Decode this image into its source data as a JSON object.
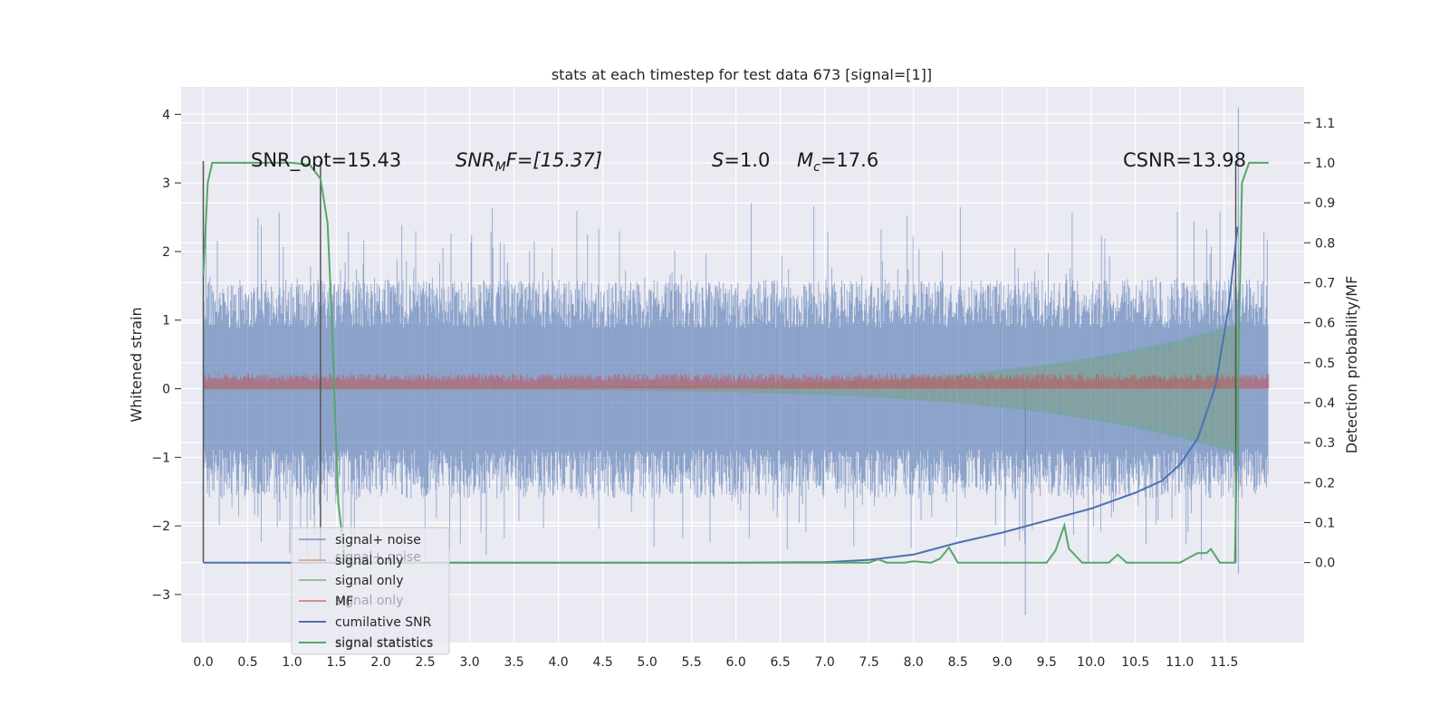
{
  "chart_data": {
    "type": "line",
    "title": "stats at each timestep for test data 673 [signal=[1]]",
    "ylabel": "Whitened strain",
    "y2label": "Detection probability/MF",
    "xlim": [
      -0.25,
      12.4
    ],
    "ylim": [
      -3.7,
      4.4
    ],
    "y2lim": [
      -0.2,
      1.19
    ],
    "grid": true,
    "legend_position": "lower-left",
    "x_ticks": [
      "0.0",
      "0.5",
      "1.0",
      "1.5",
      "2.0",
      "2.5",
      "3.0",
      "3.5",
      "4.0",
      "4.5",
      "5.0",
      "5.5",
      "6.0",
      "6.5",
      "7.0",
      "7.5",
      "8.0",
      "8.5",
      "9.0",
      "9.5",
      "10.0",
      "10.5",
      "11.0",
      "11.5"
    ],
    "y_ticks": [
      "4",
      "3",
      "2",
      "1",
      "0",
      "−1",
      "−2",
      "−3"
    ],
    "y2_ticks": [
      "1.1",
      "1.0",
      "0.9",
      "0.8",
      "0.7",
      "0.6",
      "0.5",
      "0.4",
      "0.3",
      "0.2",
      "0.1",
      "0.0"
    ],
    "annotations": {
      "snr_opt": "SNR_opt=15.43",
      "snr_mf_sym": "SNR",
      "snr_mf_sub": "M",
      "snr_mf_rest": "F=[15.37]",
      "s_sym": "S",
      "s_rest": "=1.0",
      "mc_sym": "M",
      "mc_sub": "c",
      "mc_rest": "=17.6",
      "csnr": "CSNR=13.98"
    },
    "legend": [
      "signal+ noise",
      "signal only",
      "signal only",
      "MF",
      "cumilative SNR",
      "signal statistics"
    ],
    "legend_ghost": [
      "signal+ noise",
      "signal only",
      "signal statistics"
    ],
    "colors": {
      "noise": "#4c72b0",
      "signal_orange": "#dd8452",
      "signal_green": "#55a868",
      "mf": "#c44e52",
      "csnr": "#4c72b0",
      "stat": "#55a868",
      "background": "#eaeaf2"
    },
    "series": [
      {
        "name": "cumilative SNR",
        "axis": "right",
        "x": [
          0.0,
          1.0,
          2.0,
          3.0,
          4.0,
          5.0,
          6.0,
          7.0,
          7.5,
          8.0,
          8.5,
          9.0,
          9.5,
          10.0,
          10.5,
          10.8,
          11.0,
          11.2,
          11.4,
          11.55,
          11.65
        ],
        "values": [
          0.0,
          0.0,
          0.0,
          0.0,
          0.0,
          0.0,
          0.0,
          0.001,
          0.007,
          0.02,
          0.05,
          0.075,
          0.105,
          0.135,
          0.175,
          0.205,
          0.245,
          0.31,
          0.44,
          0.64,
          0.84
        ]
      },
      {
        "name": "signal statistics",
        "axis": "right",
        "x": [
          0.0,
          0.05,
          0.1,
          0.2,
          0.5,
          1.0,
          1.2,
          1.32,
          1.4,
          1.45,
          1.52,
          1.6,
          2.0,
          7.5,
          7.6,
          7.7,
          7.9,
          8.0,
          8.2,
          8.3,
          8.4,
          8.5,
          9.0,
          9.5,
          9.6,
          9.7,
          9.75,
          9.9,
          10.2,
          10.3,
          10.4,
          11.0,
          11.2,
          11.3,
          11.35,
          11.45,
          11.55,
          11.62,
          11.66,
          11.7,
          11.78,
          11.85,
          12.0
        ],
        "values": [
          0.72,
          0.95,
          1.0,
          1.0,
          1.0,
          1.0,
          0.995,
          0.96,
          0.85,
          0.6,
          0.15,
          0.0,
          0.0,
          0.0,
          0.008,
          0.0,
          0.0,
          0.003,
          0.0,
          0.01,
          0.038,
          0.0,
          0.0,
          0.0,
          0.03,
          0.093,
          0.035,
          0.0,
          0.0,
          0.02,
          0.0,
          0.0,
          0.024,
          0.024,
          0.034,
          0.0,
          0.0,
          0.0,
          0.5,
          0.95,
          1.0,
          1.0,
          1.0
        ]
      },
      {
        "name": "signal+ noise",
        "axis": "left",
        "x_range": [
          0.0,
          12.0
        ],
        "band": [
          -1.6,
          1.6
        ],
        "peak_max": 4.1,
        "peak_min": -3.3
      },
      {
        "name": "signal only",
        "axis": "left",
        "x_range": [
          0.0,
          12.0
        ],
        "envelope_start": 0.02,
        "envelope_end": 0.95
      },
      {
        "name": "MF",
        "axis": "left",
        "x_range": [
          0.0,
          12.0
        ],
        "band": [
          0.0,
          0.22
        ]
      }
    ],
    "markers": [
      {
        "x": 0.0,
        "type": "vline"
      },
      {
        "x": 1.32,
        "type": "vline"
      },
      {
        "x": 11.63,
        "type": "vline"
      }
    ]
  }
}
